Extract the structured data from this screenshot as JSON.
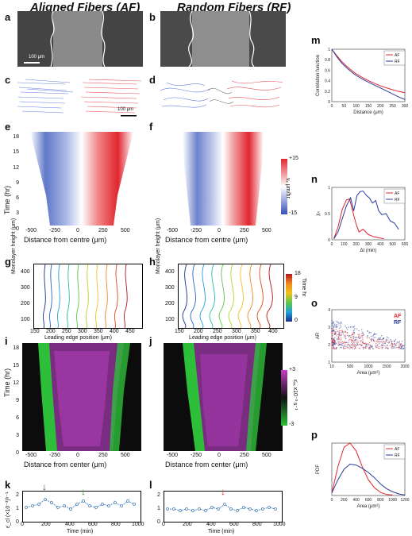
{
  "headers": {
    "af": "Aligned Fibers (AF)",
    "rf": "Random Fibers (RF)"
  },
  "panels": {
    "a": "a",
    "b": "b",
    "c": "c",
    "d": "d",
    "e": "e",
    "f": "f",
    "g": "g",
    "h": "h",
    "i": "i",
    "j": "j",
    "k": "k",
    "l": "l",
    "m": "m",
    "n": "n",
    "o": "o",
    "p": "p"
  },
  "scalebars": {
    "a": "100 μm",
    "c": "100 μm"
  },
  "colors": {
    "af": "#e0262f",
    "rf": "#2b3a9a",
    "green": "#2dbf3a",
    "magenta": "#c23fc8",
    "cyan": "#3a78b8"
  },
  "heatmap_ef": {
    "ylabel": "Time (hr)",
    "yticks": [
      "18",
      "15",
      "12",
      "9",
      "6",
      "3",
      "0"
    ],
    "xticks": [
      "-500",
      "-250",
      "0",
      "250",
      "500"
    ],
    "xlabel": "Distance from centre (μm)",
    "cbar_top": "+15",
    "cbar_bottom": "-15",
    "cbar_label": "vₓ μm/hr"
  },
  "kymo_gh": {
    "ylabel": "Monolayer height (μm)",
    "yticks": [
      "400",
      "300",
      "200",
      "100"
    ],
    "g_xticks": [
      "150",
      "200",
      "250",
      "300",
      "350",
      "400",
      "450"
    ],
    "h_xticks": [
      "150",
      "200",
      "250",
      "300",
      "350",
      "400"
    ],
    "xlabel": "Leading edge position (μm)",
    "cbar_top": "18",
    "cbar_mid": "9",
    "cbar_bottom": "0",
    "cbar_label": "Time hr"
  },
  "heatmap_ij": {
    "ylabel": "Time (hr)",
    "yticks": [
      "18",
      "15",
      "12",
      "9",
      "6",
      "3",
      "0"
    ],
    "xticks": [
      "-500",
      "-250",
      "0",
      "250",
      "500"
    ],
    "xlabel": "Distance from center (μm)",
    "cbar_top": "+3",
    "cbar_bottom": "-3",
    "cbar_label": "ε̇ₓₓ x10⁻³ s⁻¹"
  },
  "panel_k": {
    "ylabel": "ε̇_cl (×10⁻³)ʰ⁻¹",
    "yticks": [
      "2",
      "1",
      "0"
    ],
    "xticks": [
      "0",
      "200",
      "400",
      "600",
      "800",
      "1000"
    ],
    "xlabel": "Time (min)"
  },
  "panel_l": {
    "yticks": [
      "2",
      "1",
      "0"
    ],
    "xticks": [
      "0",
      "200",
      "400",
      "600",
      "800",
      "1000"
    ],
    "xlabel": "Time (min)"
  },
  "chart_data": [
    {
      "id": "m",
      "type": "line",
      "xlabel": "Distance (μm)",
      "ylabel": "Correlation function",
      "xlim": [
        0,
        300
      ],
      "ylim": [
        0,
        1
      ],
      "xticks": [
        "0",
        "50",
        "100",
        "150",
        "200",
        "250",
        "300"
      ],
      "yticks": [
        "1",
        "0.8",
        "0.6",
        "0.4",
        "0.2",
        "0"
      ],
      "legend": "top-right",
      "series": [
        {
          "name": "AF",
          "color": "#e0262f",
          "x": [
            0,
            20,
            40,
            60,
            80,
            100,
            130,
            160,
            200,
            240,
            270,
            300
          ],
          "y": [
            1.0,
            0.88,
            0.77,
            0.68,
            0.6,
            0.53,
            0.45,
            0.38,
            0.3,
            0.24,
            0.2,
            0.17
          ]
        },
        {
          "name": "RF",
          "color": "#2b3a9a",
          "x": [
            0,
            20,
            40,
            60,
            80,
            100,
            130,
            160,
            200,
            240,
            270,
            300
          ],
          "y": [
            1.0,
            0.86,
            0.74,
            0.65,
            0.57,
            0.5,
            0.42,
            0.35,
            0.26,
            0.17,
            0.1,
            0.04
          ]
        }
      ]
    },
    {
      "id": "n",
      "type": "line",
      "xlabel": "Δt (min)",
      "ylabel": "χ₄",
      "xlim": [
        0,
        700
      ],
      "ylim": [
        0,
        1
      ],
      "xticks": [
        "0",
        "100",
        "200",
        "300",
        "400",
        "500",
        "600"
      ],
      "yticks": [
        "1",
        "0.5",
        "0"
      ],
      "legend": "top-right",
      "series": [
        {
          "name": "AF",
          "color": "#e0262f",
          "x": [
            20,
            60,
            100,
            140,
            170,
            200,
            230,
            260,
            300,
            350,
            400,
            450,
            500
          ],
          "y": [
            0.03,
            0.25,
            0.58,
            0.76,
            0.78,
            0.55,
            0.32,
            0.15,
            0.2,
            0.1,
            0.06,
            0.04,
            0.02
          ]
        },
        {
          "name": "RF",
          "color": "#2b3a9a",
          "x": [
            20,
            60,
            100,
            140,
            180,
            210,
            240,
            270,
            300,
            330,
            360,
            390,
            420,
            450,
            480,
            520,
            560,
            600,
            640
          ],
          "y": [
            0.02,
            0.15,
            0.4,
            0.65,
            0.8,
            0.55,
            0.84,
            0.92,
            0.93,
            0.85,
            0.8,
            0.7,
            0.75,
            0.55,
            0.48,
            0.5,
            0.36,
            0.32,
            0.2
          ]
        }
      ]
    },
    {
      "id": "o",
      "type": "scatter",
      "xlabel": "Area (μm²)",
      "ylabel": "AR",
      "xlim": [
        0,
        2000
      ],
      "ylim": [
        0,
        4
      ],
      "xticks": [
        "10",
        "500",
        "1000",
        "1500",
        "2000"
      ],
      "yticks": [
        "4",
        "3",
        "2",
        "1"
      ],
      "legend": "top-right",
      "series": [
        {
          "name": "AF",
          "color": "#e0262f"
        },
        {
          "name": "RF",
          "color": "#2b3a9a"
        }
      ]
    },
    {
      "id": "p",
      "type": "line",
      "xlabel": "Area (μm²)",
      "ylabel": "PDF",
      "xlim": [
        0,
        1200
      ],
      "ylim": [
        0,
        1
      ],
      "xticks": [
        "0",
        "200",
        "400",
        "600",
        "800",
        "1000",
        "1200"
      ],
      "legend": "top-right",
      "series": [
        {
          "name": "AF",
          "color": "#e0262f",
          "x": [
            0,
            100,
            200,
            300,
            400,
            500,
            600,
            700,
            800,
            900,
            1000
          ],
          "y": [
            0.05,
            0.55,
            0.92,
            1.0,
            0.85,
            0.55,
            0.3,
            0.15,
            0.06,
            0.02,
            0.01
          ]
        },
        {
          "name": "RF",
          "color": "#2b3a9a",
          "x": [
            0,
            100,
            200,
            300,
            400,
            500,
            600,
            700,
            800,
            900,
            1000,
            1100,
            1200
          ],
          "y": [
            0.05,
            0.3,
            0.5,
            0.6,
            0.58,
            0.52,
            0.44,
            0.34,
            0.22,
            0.13,
            0.07,
            0.03,
            0.01
          ]
        }
      ]
    }
  ]
}
